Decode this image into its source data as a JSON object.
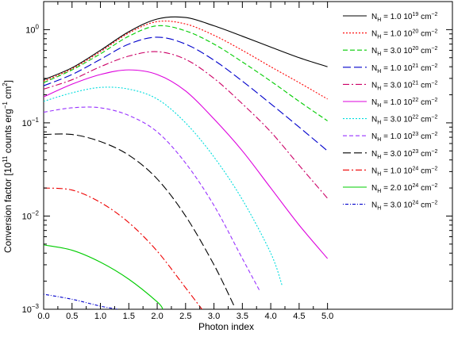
{
  "chart_data": {
    "type": "line",
    "xlabel": "Photon index",
    "ylabel": "Conversion factor [10",
    "ylabel_sup1": "11",
    "ylabel_mid": " counts erg",
    "ylabel_sup2": "−1",
    "ylabel_end": " cm",
    "ylabel_sup3": "2",
    "ylabel_close": "]",
    "y_scale": "log",
    "xlim": [
      0,
      7.2
    ],
    "ylim": [
      0.001,
      2.0
    ],
    "x_ticks": [
      "0.0",
      "0.5",
      "1.0",
      "1.5",
      "2.0",
      "2.5",
      "3.0",
      "3.5",
      "4.0",
      "4.5",
      "5.0"
    ],
    "x_tick_values": [
      0,
      0.5,
      1,
      1.5,
      2,
      2.5,
      3,
      3.5,
      4,
      4.5,
      5
    ],
    "y_ticks": [
      {
        "value": 0.001,
        "base": "10",
        "exp": "−3"
      },
      {
        "value": 0.01,
        "base": "10",
        "exp": "−2"
      },
      {
        "value": 0.1,
        "base": "10",
        "exp": "−1"
      },
      {
        "value": 1,
        "base": "10",
        "exp": "0"
      }
    ],
    "legend_position": "top-right",
    "series": [
      {
        "name": "N_H = 1.0 10^19 cm^-2",
        "color": "#000000",
        "dash": "",
        "x": [
          0,
          0.5,
          1,
          1.5,
          2,
          2.5,
          3,
          3.5,
          4,
          4.5,
          5
        ],
        "y": [
          0.29,
          0.39,
          0.6,
          0.95,
          1.3,
          1.35,
          1.1,
          0.85,
          0.65,
          0.5,
          0.4
        ]
      },
      {
        "name": "N_H = 1.0 10^20 cm^-2",
        "color": "#ff0000",
        "dash": "2,2",
        "x": [
          0,
          0.5,
          1,
          1.5,
          2,
          2.5,
          3,
          3.5,
          4,
          4.5,
          5
        ],
        "y": [
          0.28,
          0.38,
          0.58,
          0.92,
          1.22,
          1.15,
          0.87,
          0.6,
          0.4,
          0.27,
          0.18
        ]
      },
      {
        "name": "N_H = 3.0 10^20 cm^-2",
        "color": "#00cc00",
        "dash": "6,3",
        "x": [
          0,
          0.5,
          1,
          1.5,
          2,
          2.5,
          3,
          3.5,
          4,
          4.5,
          5
        ],
        "y": [
          0.27,
          0.37,
          0.55,
          0.85,
          1.1,
          0.97,
          0.7,
          0.45,
          0.28,
          0.17,
          0.105
        ]
      },
      {
        "name": "N_H = 1.0 10^21 cm^-2",
        "color": "#0000cc",
        "dash": "10,4",
        "x": [
          0,
          0.5,
          1,
          1.5,
          2,
          2.5,
          3,
          3.5,
          4,
          4.5,
          5
        ],
        "y": [
          0.25,
          0.33,
          0.48,
          0.7,
          0.83,
          0.7,
          0.47,
          0.28,
          0.16,
          0.09,
          0.05
        ]
      },
      {
        "name": "N_H = 3.0 10^21 cm^-2",
        "color": "#cc0066",
        "dash": "8,3,2,3",
        "x": [
          0,
          0.5,
          1,
          1.5,
          2,
          2.5,
          3,
          3.5,
          4,
          4.5,
          5
        ],
        "y": [
          0.23,
          0.29,
          0.4,
          0.52,
          0.58,
          0.48,
          0.3,
          0.16,
          0.08,
          0.035,
          0.0155
        ]
      },
      {
        "name": "N_H = 1.0 10^22 cm^-2",
        "color": "#dd00dd",
        "dash": "",
        "x": [
          0,
          0.5,
          1,
          1.5,
          2,
          2.5,
          3,
          3.5,
          4,
          4.5,
          5
        ],
        "y": [
          0.19,
          0.26,
          0.33,
          0.37,
          0.33,
          0.22,
          0.11,
          0.05,
          0.02,
          0.008,
          0.0035
        ]
      },
      {
        "name": "N_H = 3.0 10^22 cm^-2",
        "color": "#00dddd",
        "dash": "2,2",
        "x": [
          0,
          0.5,
          1,
          1.5,
          2,
          2.5,
          3,
          3.5,
          4,
          4.2
        ],
        "y": [
          0.17,
          0.21,
          0.24,
          0.23,
          0.18,
          0.1,
          0.043,
          0.015,
          0.004,
          0.0018
        ]
      },
      {
        "name": "N_H = 1.0 10^23 cm^-2",
        "color": "#9933ff",
        "dash": "5,3",
        "x": [
          0,
          0.5,
          1,
          1.5,
          2,
          2.5,
          3,
          3.5,
          3.8
        ],
        "y": [
          0.13,
          0.145,
          0.145,
          0.12,
          0.08,
          0.037,
          0.013,
          0.0035,
          0.0016
        ]
      },
      {
        "name": "N_H = 3.0 10^23 cm^-2",
        "color": "#000000",
        "dash": "10,4",
        "x": [
          0,
          0.5,
          1,
          1.5,
          2,
          2.5,
          3,
          3.35
        ],
        "y": [
          0.075,
          0.075,
          0.063,
          0.045,
          0.025,
          0.01,
          0.003,
          0.0011
        ]
      },
      {
        "name": "N_H = 1.0 10^24 cm^-2",
        "color": "#ee0000",
        "dash": "8,3,2,3",
        "x": [
          0,
          0.5,
          1,
          1.5,
          2,
          2.5,
          2.8
        ],
        "y": [
          0.02,
          0.019,
          0.014,
          0.0085,
          0.0042,
          0.0017,
          0.00098
        ]
      },
      {
        "name": "N_H = 2.0 10^24 cm^-2",
        "color": "#00cc00",
        "dash": "",
        "x": [
          0,
          0.5,
          1,
          1.5,
          2,
          2.1
        ],
        "y": [
          0.0049,
          0.0043,
          0.0032,
          0.0021,
          0.0012,
          0.001
        ]
      },
      {
        "name": "N_H = 3.0 10^24 cm^-2",
        "color": "#0000cc",
        "dash": "1,2,4,2",
        "x": [
          0,
          0.5,
          1,
          1.3
        ],
        "y": [
          0.00145,
          0.00128,
          0.00108,
          0.001
        ]
      }
    ]
  }
}
